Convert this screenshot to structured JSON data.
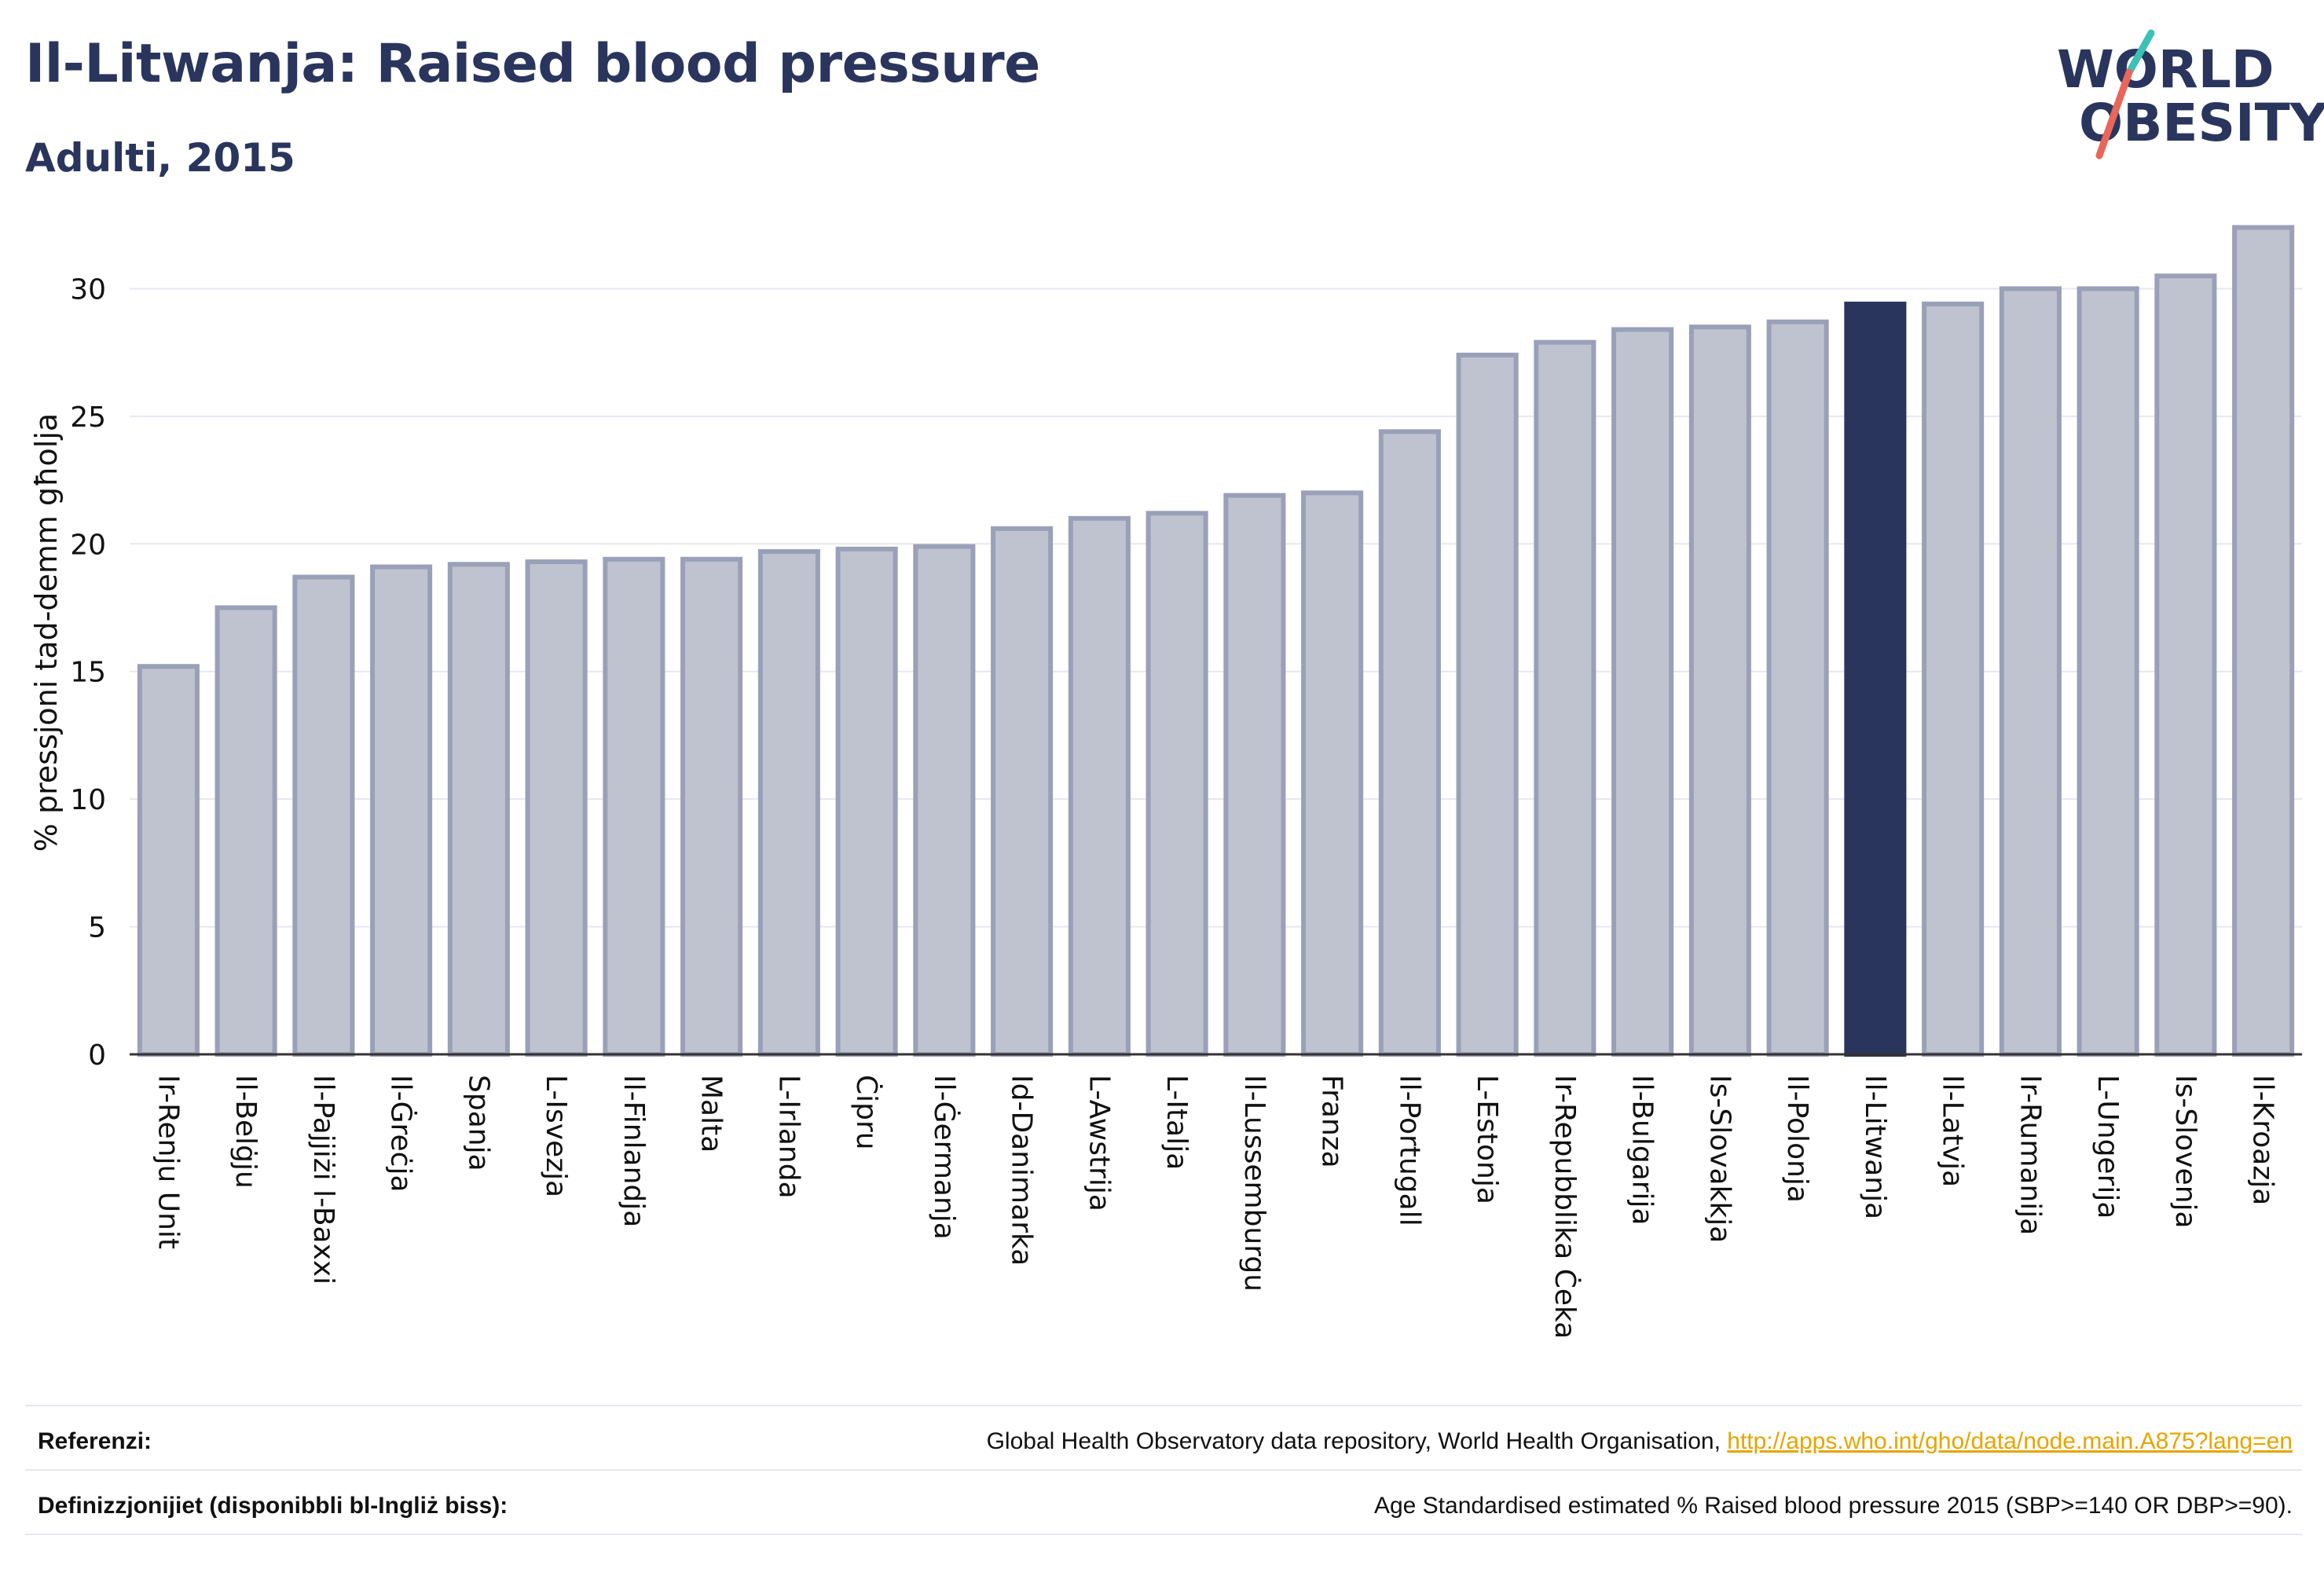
{
  "header": {
    "title": "Il-Litwanja: Raised blood pressure",
    "subtitle": "Adulti, 2015"
  },
  "logo": {
    "line1": "WORLD",
    "line2": "OBESITY",
    "colors": {
      "text": "#2a355e",
      "slash_top": "#3cc1b7",
      "slash_bottom": "#e8675a"
    }
  },
  "colors": {
    "bar": "#bfc3d0",
    "bar_border": "#9aa0b8",
    "highlight": "#2a355e",
    "grid": "#e6e8ef",
    "text": "#2a355e"
  },
  "chart_data": {
    "type": "bar",
    "title": "Il-Litwanja: Raised blood pressure",
    "subtitle": "Adulti, 2015",
    "ylabel": "% pressjoni tad-demm għolja",
    "xlabel": "",
    "ylim": [
      0,
      33
    ],
    "yticks": [
      0,
      5,
      10,
      15,
      20,
      25,
      30
    ],
    "grid": true,
    "highlight": "Il-Litwanja",
    "categories": [
      "Ir-Renju Unit",
      "Il-Belġju",
      "Il-Pajjiżi l-Baxxi",
      "Il-Ġreċja",
      "Spanja",
      "L-Isvezja",
      "Il-Finlandja",
      "Malta",
      "L-Irlanda",
      "Ċipru",
      "Il-Ġermanja",
      "Id-Danimarka",
      "L-Awstrija",
      "L-Italja",
      "Il-Lussemburgu",
      "Franza",
      "Il-Portugall",
      "L-Estonja",
      "Ir-Repubblika Ċeka",
      "Il-Bulgarija",
      "Is-Slovakkja",
      "Il-Polonja",
      "Il-Litwanja",
      "Il-Latvja",
      "Ir-Rumanija",
      "L-Ungerija",
      "Is-Slovenja",
      "Il-Kroazja"
    ],
    "values": [
      15.2,
      17.5,
      18.7,
      19.1,
      19.2,
      19.3,
      19.4,
      19.4,
      19.7,
      19.8,
      19.9,
      20.6,
      21.0,
      21.2,
      21.9,
      22.0,
      24.4,
      27.4,
      27.9,
      28.4,
      28.5,
      28.7,
      29.4,
      29.4,
      30.0,
      30.0,
      30.5,
      32.4
    ]
  },
  "footer": {
    "references_label": "Referenzi:",
    "references_text": "Global Health Observatory data repository, World Health Organisation, ",
    "references_link": "http://apps.who.int/gho/data/node.main.A875?lang=en",
    "definitions_label": "Definizzjonijiet (disponibbli bl-Ingliż biss):",
    "definitions_text": "Age Standardised estimated % Raised blood pressure 2015 (SBP>=140 OR DBP>=90)."
  }
}
